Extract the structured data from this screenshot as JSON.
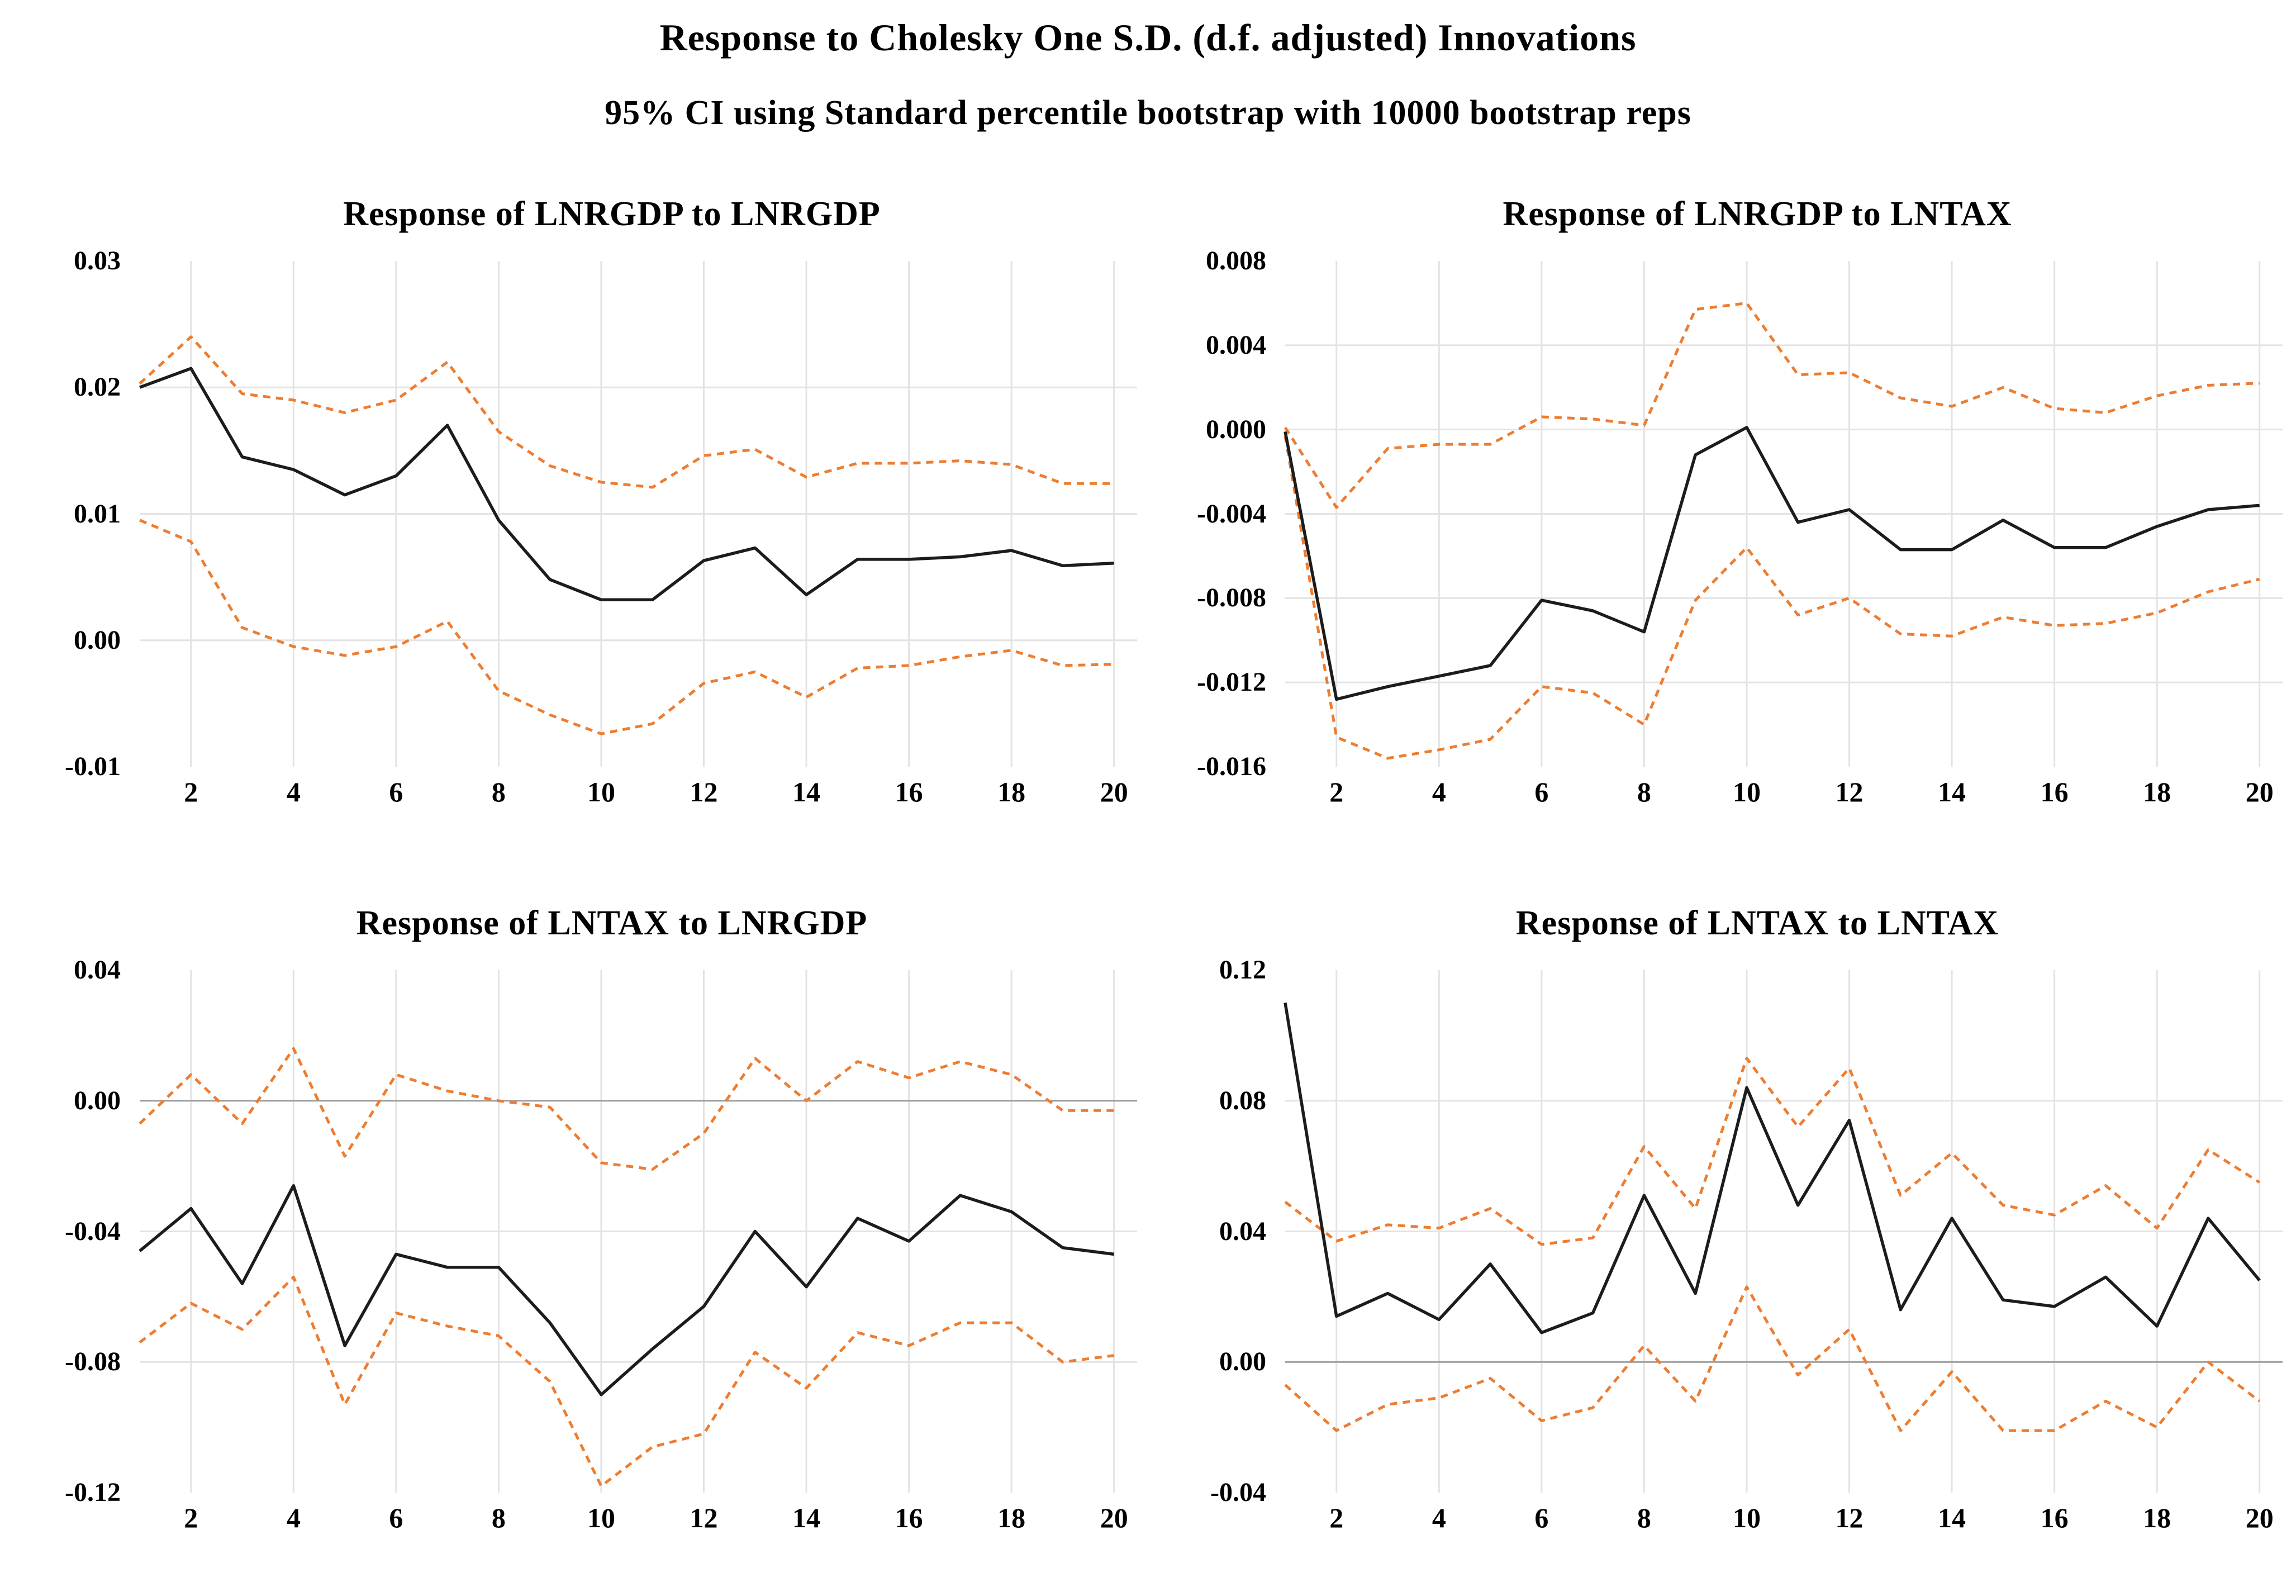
{
  "header": {
    "title": "Response to Cholesky One S.D. (d.f. adjusted) Innovations",
    "subtitle": "95% CI using Standard percentile bootstrap with 10000 bootstrap reps"
  },
  "colors": {
    "background": "#ffffff",
    "text": "#000000",
    "response": "#1c1c1c",
    "ci": "#ed7d31",
    "gridline": "#e3e3e3",
    "zero_line": "#9c9c9c"
  },
  "chart_data": [
    {
      "id": "response-of-lnrgdp-to-lnrgdp",
      "type": "line",
      "title": "Response of LNRGDP to LNRGDP",
      "xlabel": "",
      "ylabel": "",
      "xlim": [
        1,
        20.45
      ],
      "ylim": [
        -0.01,
        0.03
      ],
      "grid": true,
      "zero_line": false,
      "legend_position": "none",
      "x": [
        1,
        2,
        3,
        4,
        5,
        6,
        7,
        8,
        9,
        10,
        11,
        12,
        13,
        14,
        15,
        16,
        17,
        18,
        19,
        20
      ],
      "x_ticks": [
        "2",
        "4",
        "6",
        "8",
        "10",
        "12",
        "14",
        "16",
        "18",
        "20"
      ],
      "y_ticks": [
        "0.03",
        "0.02",
        "0.01",
        "0.00",
        "-0.01"
      ],
      "series": [
        {
          "name": "response",
          "style": "solid",
          "color_key": "response",
          "values": [
            0.02,
            0.0215,
            0.0145,
            0.0135,
            0.0115,
            0.013,
            0.017,
            0.0095,
            0.0048,
            0.0032,
            0.0032,
            0.0063,
            0.0073,
            0.0036,
            0.0064,
            0.0064,
            0.0066,
            0.0071,
            0.0059,
            0.0061
          ]
        },
        {
          "name": "upper_95_ci",
          "style": "dashed",
          "color_key": "ci",
          "values": [
            0.0203,
            0.024,
            0.0195,
            0.019,
            0.018,
            0.019,
            0.022,
            0.0165,
            0.0138,
            0.0125,
            0.0121,
            0.0146,
            0.0151,
            0.0129,
            0.014,
            0.014,
            0.0142,
            0.0139,
            0.0124,
            0.0124
          ]
        },
        {
          "name": "lower_95_ci",
          "style": "dashed",
          "color_key": "ci",
          "values": [
            0.0095,
            0.0078,
            0.001,
            -0.0005,
            -0.0012,
            -0.0005,
            0.0015,
            -0.004,
            -0.0059,
            -0.0074,
            -0.0066,
            -0.0034,
            -0.0025,
            -0.0045,
            -0.0022,
            -0.002,
            -0.0013,
            -0.0008,
            -0.002,
            -0.0019
          ]
        }
      ]
    },
    {
      "id": "response-of-lnrgdp-to-lntax",
      "type": "line",
      "title": "Response of LNRGDP to LNTAX",
      "xlabel": "",
      "ylabel": "",
      "xlim": [
        1,
        20.45
      ],
      "ylim": [
        -0.016,
        0.008
      ],
      "grid": true,
      "zero_line": false,
      "legend_position": "none",
      "x": [
        1,
        2,
        3,
        4,
        5,
        6,
        7,
        8,
        9,
        10,
        11,
        12,
        13,
        14,
        15,
        16,
        17,
        18,
        19,
        20
      ],
      "x_ticks": [
        "2",
        "4",
        "6",
        "8",
        "10",
        "12",
        "14",
        "16",
        "18",
        "20"
      ],
      "y_ticks": [
        "0.008",
        "0.004",
        "0.000",
        "-0.004",
        "-0.008",
        "-0.012",
        "-0.016"
      ],
      "series": [
        {
          "name": "response",
          "style": "solid",
          "color_key": "response",
          "values": [
            -0.0001,
            -0.0128,
            -0.0122,
            -0.0117,
            -0.0112,
            -0.0081,
            -0.0086,
            -0.0096,
            -0.0012,
            0.0001,
            -0.0044,
            -0.0038,
            -0.0057,
            -0.0057,
            -0.0043,
            -0.0056,
            -0.0056,
            -0.0046,
            -0.0038,
            -0.0036
          ]
        },
        {
          "name": "upper_95_ci",
          "style": "dashed",
          "color_key": "ci",
          "values": [
            0.0001,
            -0.0037,
            -0.0009,
            -0.0007,
            -0.0007,
            0.0006,
            0.0005,
            0.0002,
            0.0057,
            0.006,
            0.0026,
            0.0027,
            0.0015,
            0.0011,
            0.002,
            0.001,
            0.0008,
            0.0016,
            0.0021,
            0.0022
          ]
        },
        {
          "name": "lower_95_ci",
          "style": "dashed",
          "color_key": "ci",
          "values": [
            -0.0003,
            -0.0146,
            -0.0156,
            -0.0152,
            -0.0147,
            -0.0122,
            -0.0125,
            -0.014,
            -0.0081,
            -0.0056,
            -0.0088,
            -0.008,
            -0.0097,
            -0.0098,
            -0.0089,
            -0.0093,
            -0.0092,
            -0.0087,
            -0.0077,
            -0.0071
          ]
        }
      ]
    },
    {
      "id": "response-of-lntax-to-lnrgdp",
      "type": "line",
      "title": "Response of LNTAX to LNRGDP",
      "xlabel": "",
      "ylabel": "",
      "xlim": [
        1,
        20.45
      ],
      "ylim": [
        -0.12,
        0.04
      ],
      "grid": true,
      "zero_line": true,
      "legend_position": "none",
      "x": [
        1,
        2,
        3,
        4,
        5,
        6,
        7,
        8,
        9,
        10,
        11,
        12,
        13,
        14,
        15,
        16,
        17,
        18,
        19,
        20
      ],
      "x_ticks": [
        "2",
        "4",
        "6",
        "8",
        "10",
        "12",
        "14",
        "16",
        "18",
        "20"
      ],
      "y_ticks": [
        "0.04",
        "0.00",
        "-0.04",
        "-0.08",
        "-0.12"
      ],
      "series": [
        {
          "name": "response",
          "style": "solid",
          "color_key": "response",
          "values": [
            -0.046,
            -0.033,
            -0.056,
            -0.026,
            -0.075,
            -0.047,
            -0.051,
            -0.051,
            -0.068,
            -0.09,
            -0.076,
            -0.063,
            -0.04,
            -0.057,
            -0.036,
            -0.043,
            -0.029,
            -0.034,
            -0.045,
            -0.047
          ]
        },
        {
          "name": "upper_95_ci",
          "style": "dashed",
          "color_key": "ci",
          "values": [
            -0.007,
            0.008,
            -0.007,
            0.016,
            -0.017,
            0.008,
            0.003,
            0.0,
            -0.002,
            -0.019,
            -0.021,
            -0.01,
            0.013,
            0.0,
            0.012,
            0.007,
            0.012,
            0.008,
            -0.003,
            -0.003
          ]
        },
        {
          "name": "lower_95_ci",
          "style": "dashed",
          "color_key": "ci",
          "values": [
            -0.074,
            -0.062,
            -0.07,
            -0.054,
            -0.093,
            -0.065,
            -0.069,
            -0.072,
            -0.086,
            -0.118,
            -0.106,
            -0.102,
            -0.077,
            -0.088,
            -0.071,
            -0.075,
            -0.068,
            -0.068,
            -0.08,
            -0.078
          ]
        }
      ]
    },
    {
      "id": "response-of-lntax-to-lntax",
      "type": "line",
      "title": "Response of LNTAX to LNTAX",
      "xlabel": "",
      "ylabel": "",
      "xlim": [
        1,
        20.45
      ],
      "ylim": [
        -0.04,
        0.12
      ],
      "grid": true,
      "zero_line": true,
      "legend_position": "none",
      "x": [
        1,
        2,
        3,
        4,
        5,
        6,
        7,
        8,
        9,
        10,
        11,
        12,
        13,
        14,
        15,
        16,
        17,
        18,
        19,
        20
      ],
      "x_ticks": [
        "2",
        "4",
        "6",
        "8",
        "10",
        "12",
        "14",
        "16",
        "18",
        "20"
      ],
      "y_ticks": [
        "0.12",
        "0.08",
        "0.04",
        "0.00",
        "-0.04"
      ],
      "series": [
        {
          "name": "response",
          "style": "solid",
          "color_key": "response",
          "values": [
            0.11,
            0.014,
            0.021,
            0.013,
            0.03,
            0.009,
            0.015,
            0.051,
            0.021,
            0.084,
            0.048,
            0.074,
            0.016,
            0.044,
            0.019,
            0.017,
            0.026,
            0.011,
            0.044,
            0.025
          ]
        },
        {
          "name": "upper_95_ci",
          "style": "dashed",
          "color_key": "ci",
          "values": [
            0.049,
            0.037,
            0.042,
            0.041,
            0.047,
            0.036,
            0.038,
            0.066,
            0.047,
            0.093,
            0.072,
            0.09,
            0.051,
            0.064,
            0.048,
            0.045,
            0.054,
            0.041,
            0.065,
            0.055
          ]
        },
        {
          "name": "lower_95_ci",
          "style": "dashed",
          "color_key": "ci",
          "values": [
            -0.007,
            -0.021,
            -0.013,
            -0.011,
            -0.005,
            -0.018,
            -0.014,
            0.005,
            -0.012,
            0.023,
            -0.004,
            0.01,
            -0.021,
            -0.003,
            -0.021,
            -0.021,
            -0.012,
            -0.02,
            0.0,
            -0.012
          ]
        }
      ]
    }
  ]
}
